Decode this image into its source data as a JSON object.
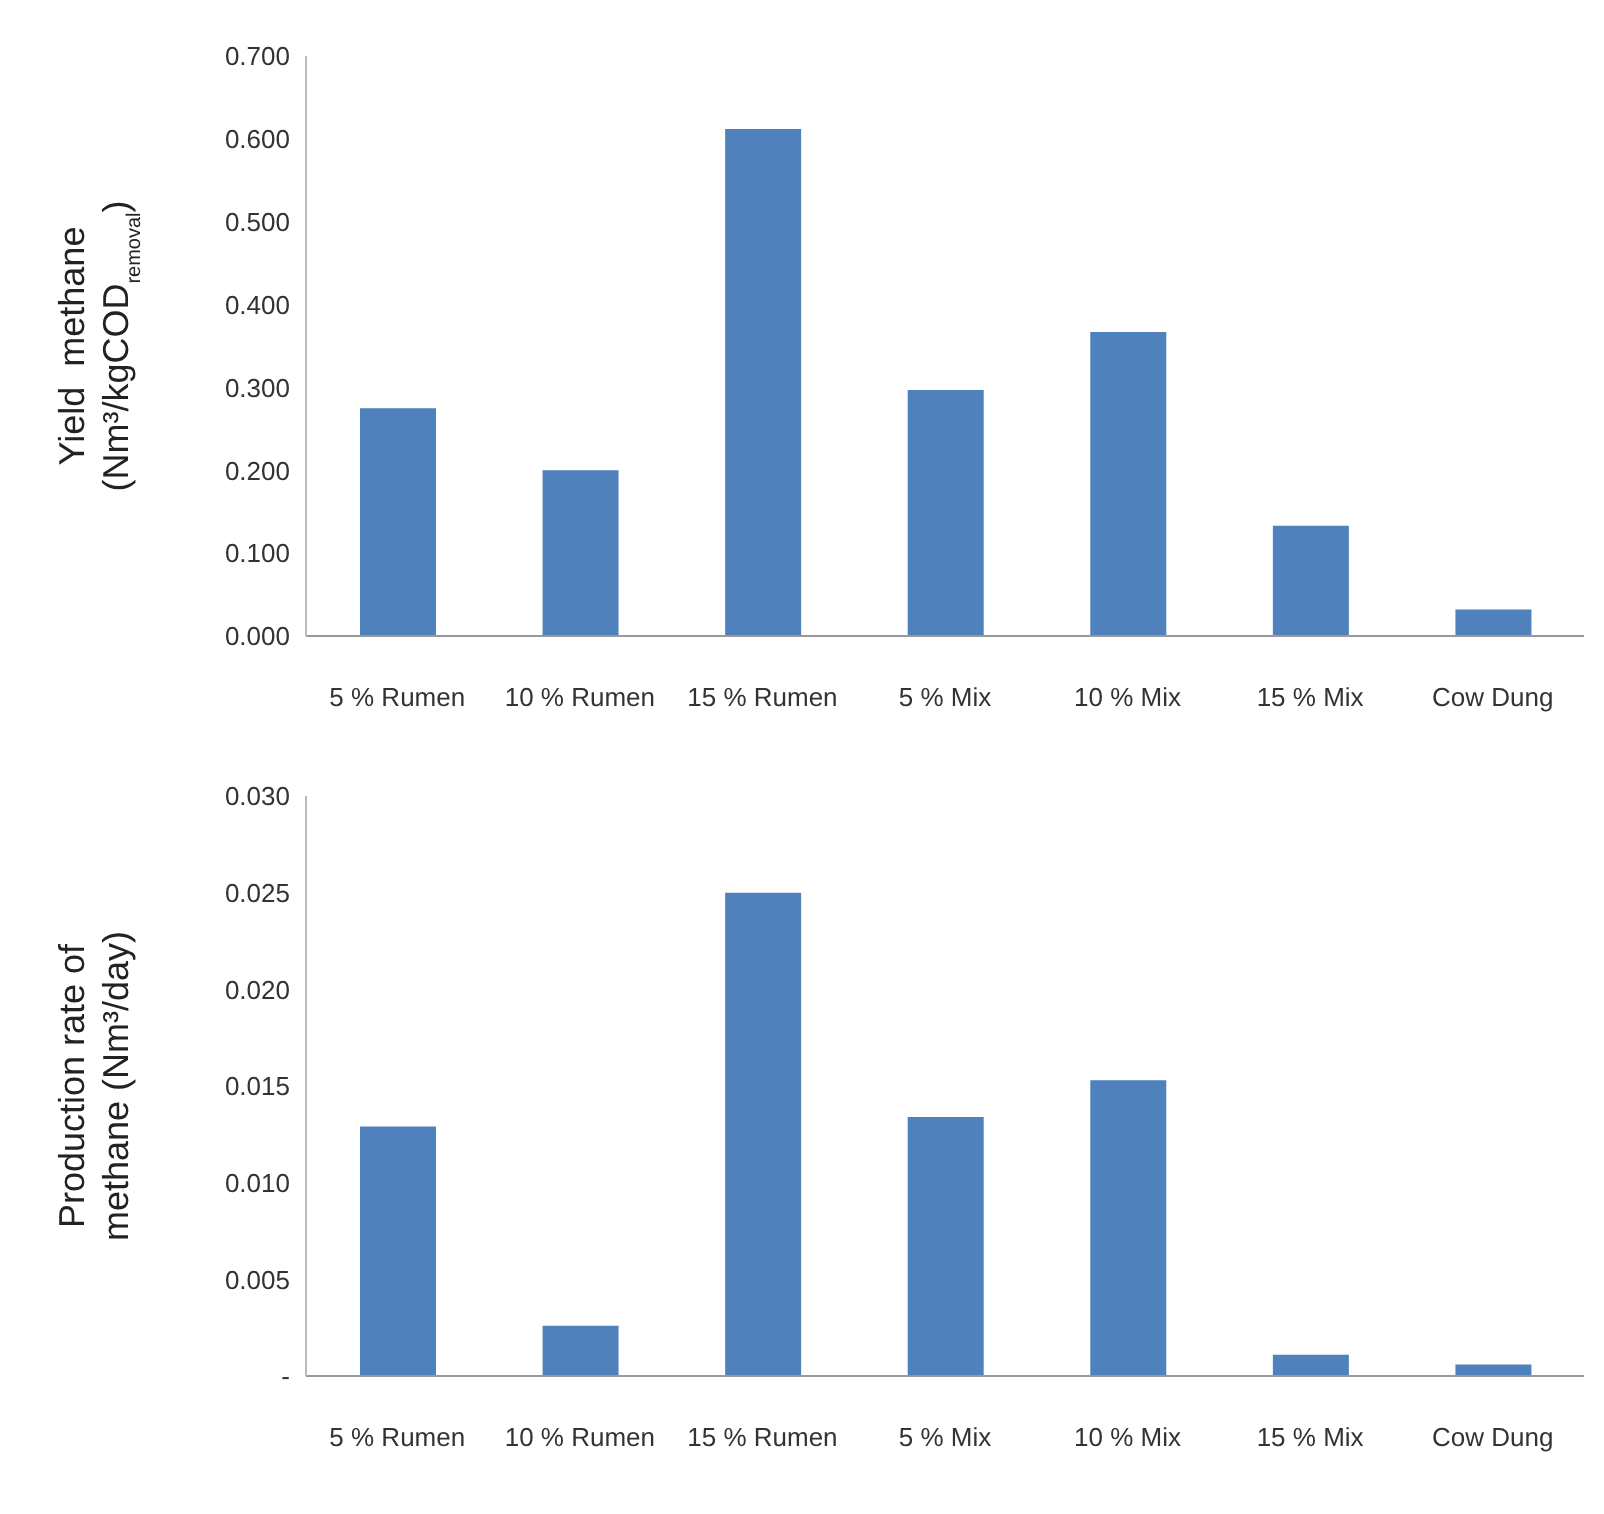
{
  "chart_data": [
    {
      "type": "bar",
      "ylabel": "Yield  methane (Nm³/kgCOD$_{removal}$)",
      "categories": [
        "5 % Rumen",
        "10 % Rumen",
        "15 % Rumen",
        "5 % Mix",
        "10 % Mix",
        "15 % Mix",
        "Cow Dung"
      ],
      "values": [
        0.275,
        0.2,
        0.612,
        0.297,
        0.367,
        0.133,
        0.032
      ],
      "color": "#4f81bd",
      "ylim": [
        0,
        0.7
      ],
      "yticks": [
        {
          "value": 0,
          "label": "0.000"
        },
        {
          "value": 0.1,
          "label": "0.100"
        },
        {
          "value": 0.2,
          "label": "0.200"
        },
        {
          "value": 0.3,
          "label": "0.300"
        },
        {
          "value": 0.4,
          "label": "0.400"
        },
        {
          "value": 0.5,
          "label": "0.500"
        },
        {
          "value": 0.6,
          "label": "0.600"
        },
        {
          "value": 0.7,
          "label": "0.700"
        }
      ]
    },
    {
      "type": "bar",
      "ylabel": "Production rate of methane (Nm³/day)",
      "categories": [
        "5 % Rumen",
        "10 % Rumen",
        "15 % Rumen",
        "5 % Mix",
        "10 % Mix",
        "15 % Mix",
        "Cow Dung"
      ],
      "values": [
        0.0129,
        0.0026,
        0.025,
        0.0134,
        0.0153,
        0.0011,
        0.0006
      ],
      "color": "#4f81bd",
      "ylim": [
        0,
        0.03
      ],
      "yticks": [
        {
          "value": 0,
          "label": "-"
        },
        {
          "value": 0.005,
          "label": "0.005"
        },
        {
          "value": 0.01,
          "label": "0.010"
        },
        {
          "value": 0.015,
          "label": "0.015"
        },
        {
          "value": 0.02,
          "label": "0.020"
        },
        {
          "value": 0.025,
          "label": "0.025"
        },
        {
          "value": 0.03,
          "label": "0.030"
        }
      ]
    }
  ]
}
